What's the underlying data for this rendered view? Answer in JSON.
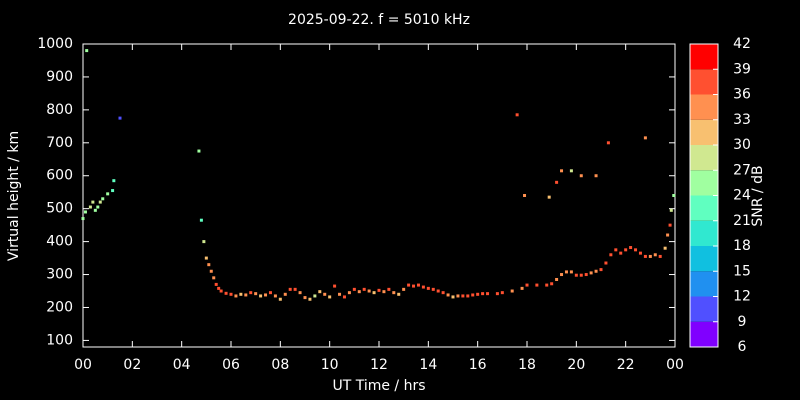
{
  "chart_data": {
    "type": "scatter",
    "title": "2025-09-22. f = 5010 kHz",
    "x_label": "UT Time / hrs",
    "y_label": "Virtual height / km",
    "xlim": [
      0,
      24
    ],
    "ylim": [
      80,
      1000
    ],
    "xticks": [
      {
        "value": 0,
        "label": "00"
      },
      {
        "value": 2,
        "label": "02"
      },
      {
        "value": 4,
        "label": "04"
      },
      {
        "value": 6,
        "label": "06"
      },
      {
        "value": 8,
        "label": "08"
      },
      10,
      12,
      14,
      16,
      18,
      20,
      22,
      {
        "value": 24,
        "label": "00"
      }
    ],
    "yticks": [
      100,
      200,
      300,
      400,
      500,
      600,
      700,
      800,
      900,
      1000
    ],
    "colorbar": {
      "label": "SNR / dB",
      "ticks": [
        6,
        9,
        12,
        15,
        18,
        21,
        24,
        27,
        30,
        33,
        36,
        39,
        42
      ],
      "colors": [
        "#8000ff",
        "#5050ff",
        "#2090f0",
        "#10c0e0",
        "#30e8d0",
        "#60ffc0",
        "#a0ffa0",
        "#d0e890",
        "#f8c070",
        "#ff9050",
        "#ff5030",
        "#ff0000"
      ]
    },
    "series": [
      {
        "x": [
          0.0,
          0.1,
          0.15,
          0.3,
          0.4,
          0.5,
          0.6,
          0.7,
          0.8,
          1.0,
          1.2,
          1.25,
          1.5,
          4.7,
          4.8,
          4.9,
          5.0,
          5.1,
          5.2,
          5.3,
          5.4,
          5.5,
          5.6,
          5.8,
          6.0,
          6.2,
          6.4,
          6.6,
          6.8,
          7.0,
          7.2,
          7.4,
          7.6,
          7.8,
          8.0,
          8.2,
          8.4,
          8.6,
          8.8,
          9.0,
          9.2,
          9.4,
          9.6,
          9.8,
          10.0,
          10.2,
          10.4,
          10.6,
          10.8,
          11.0,
          11.2,
          11.4,
          11.6,
          11.8,
          12.0,
          12.2,
          12.4,
          12.6,
          12.8,
          13.0,
          13.2,
          13.4,
          13.6,
          13.8,
          14.0,
          14.2,
          14.4,
          14.6,
          14.8,
          15.0,
          15.2,
          15.4,
          15.6,
          15.8,
          16.0,
          16.2,
          16.4,
          16.8,
          17.0,
          17.4,
          17.8,
          18.0,
          18.4,
          18.8,
          19.0,
          19.2,
          19.4,
          19.6,
          19.8,
          20.0,
          20.2,
          20.4,
          20.6,
          20.8,
          21.0,
          21.2,
          21.4,
          21.6,
          21.8,
          22.0,
          22.2,
          22.4,
          22.6,
          22.8,
          23.0,
          23.2,
          23.4,
          23.6,
          23.7,
          23.8,
          23.85,
          23.95,
          17.6,
          17.9,
          18.9,
          19.2,
          19.4,
          19.8,
          20.2,
          20.8,
          21.3,
          22.8
        ],
        "y": [
          470,
          490,
          980,
          505,
          520,
          495,
          505,
          520,
          530,
          545,
          555,
          585,
          775,
          675,
          465,
          400,
          350,
          330,
          310,
          290,
          270,
          258,
          250,
          243,
          240,
          235,
          240,
          238,
          245,
          242,
          235,
          238,
          245,
          235,
          225,
          240,
          255,
          255,
          245,
          230,
          225,
          235,
          248,
          240,
          232,
          265,
          240,
          232,
          245,
          255,
          248,
          255,
          250,
          245,
          252,
          248,
          255,
          245,
          240,
          255,
          268,
          265,
          268,
          262,
          258,
          255,
          250,
          245,
          238,
          232,
          235,
          235,
          235,
          238,
          240,
          242,
          242,
          242,
          245,
          250,
          258,
          268,
          268,
          268,
          272,
          285,
          300,
          308,
          308,
          298,
          298,
          300,
          305,
          310,
          315,
          335,
          360,
          375,
          365,
          375,
          382,
          375,
          365,
          355,
          355,
          360,
          355,
          380,
          420,
          450,
          495,
          540,
          785,
          540,
          535,
          580,
          615,
          615,
          600,
          600,
          700,
          715
        ],
        "snr": [
          24,
          24,
          24,
          27,
          27,
          24,
          24,
          27,
          24,
          24,
          21,
          21,
          9,
          24,
          21,
          27,
          30,
          33,
          33,
          33,
          36,
          36,
          36,
          36,
          36,
          33,
          30,
          33,
          36,
          33,
          30,
          33,
          36,
          33,
          30,
          33,
          36,
          36,
          33,
          33,
          30,
          27,
          30,
          33,
          30,
          36,
          33,
          36,
          33,
          36,
          33,
          36,
          33,
          30,
          36,
          33,
          36,
          33,
          30,
          33,
          36,
          36,
          36,
          36,
          36,
          36,
          36,
          36,
          33,
          30,
          33,
          36,
          36,
          36,
          36,
          36,
          36,
          36,
          36,
          33,
          33,
          36,
          36,
          36,
          36,
          33,
          33,
          33,
          33,
          36,
          36,
          36,
          33,
          33,
          36,
          36,
          36,
          36,
          36,
          36,
          36,
          36,
          36,
          36,
          33,
          33,
          36,
          30,
          33,
          36,
          27,
          24,
          36,
          33,
          30,
          36,
          33,
          27,
          33,
          33,
          36,
          33
        ]
      }
    ]
  }
}
